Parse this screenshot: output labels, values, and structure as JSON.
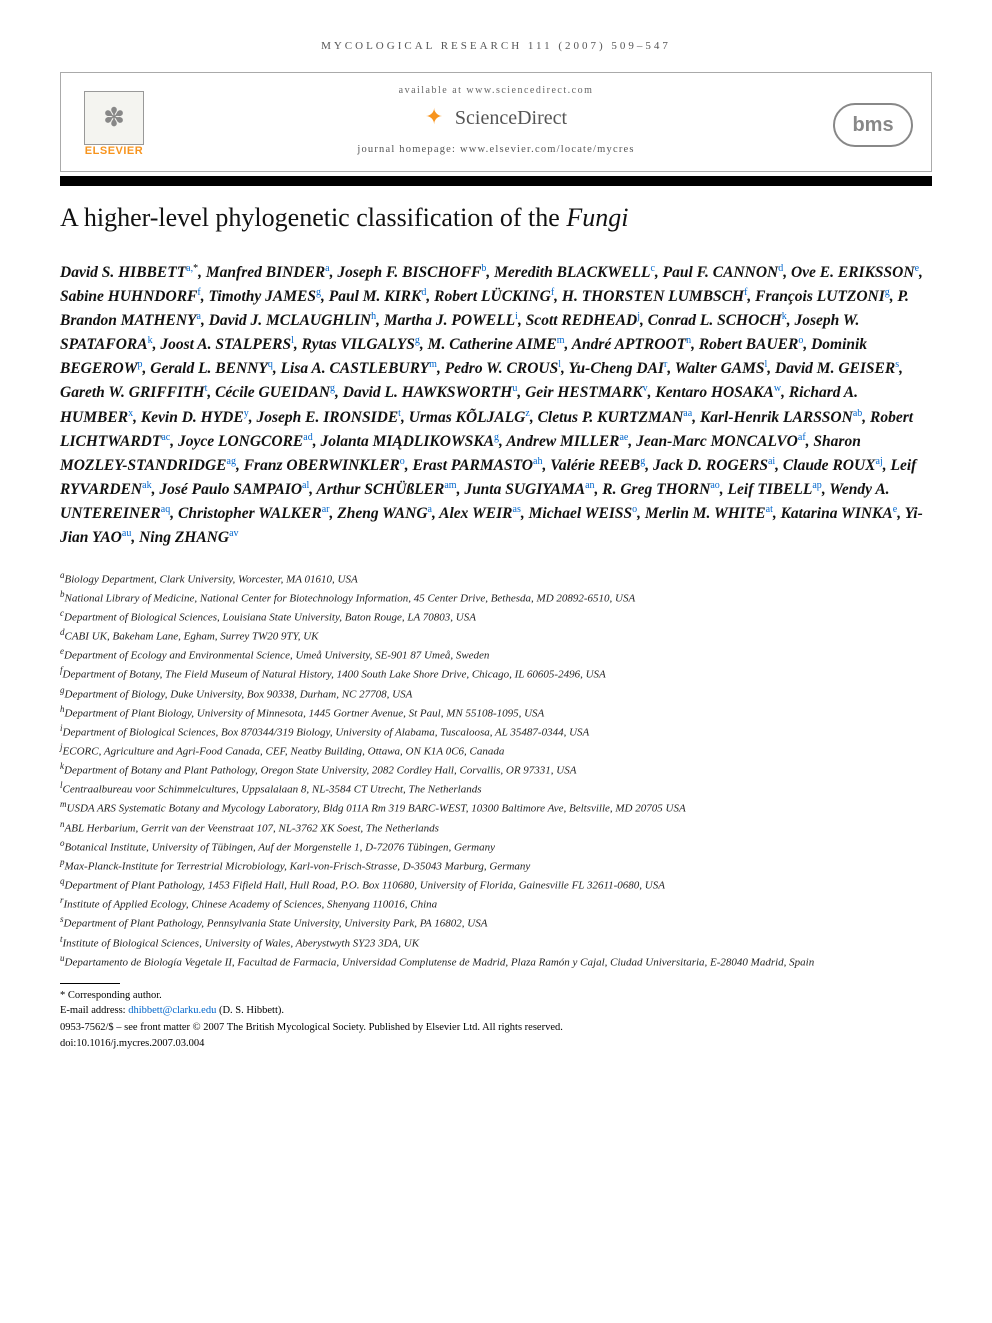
{
  "header": {
    "journal_band": "MYCOLOGICAL RESEARCH 111 (2007) 509–547",
    "available_at": "available at www.sciencedirect.com",
    "sciencedirect": "ScienceDirect",
    "journal_homepage": "journal homepage: www.elsevier.com/locate/mycres",
    "elsevier": "ELSEVIER",
    "bms": "bms"
  },
  "title": {
    "prefix": "A higher-level phylogenetic classification of the ",
    "italic": "Fungi"
  },
  "authors_html": "David S. HIBBETT<sup>a,</sup><sup class=\"star\">*</sup>, Manfred BINDER<sup>a</sup>, Joseph F. BISCHOFF<sup>b</sup>, Meredith BLACKWELL<sup>c</sup>, Paul F. CANNON<sup>d</sup>, Ove E. ERIKSSON<sup>e</sup>, Sabine HUHNDORF<sup>f</sup>, Timothy JAMES<sup>g</sup>, Paul M. KIRK<sup>d</sup>, Robert LÜCKING<sup>f</sup>, H. THORSTEN LUMBSCH<sup>f</sup>, François LUTZONI<sup>g</sup>, P. Brandon MATHENY<sup>a</sup>, David J. MCLAUGHLIN<sup>h</sup>, Martha J. POWELL<sup>i</sup>, Scott REDHEAD<sup>j</sup>, Conrad L. SCHOCH<sup>k</sup>, Joseph W. SPATAFORA<sup>k</sup>, Joost A. STALPERS<sup>l</sup>, Rytas VILGALYS<sup>g</sup>, M. Catherine AIME<sup>m</sup>, André APTROOT<sup>n</sup>, Robert BAUER<sup>o</sup>, Dominik BEGEROW<sup>p</sup>, Gerald L. BENNY<sup>q</sup>, Lisa A. CASTLEBURY<sup>m</sup>, Pedro W. CROUS<sup>l</sup>, Yu-Cheng DAI<sup>r</sup>, Walter GAMS<sup>l</sup>, David M. GEISER<sup>s</sup>, Gareth W. GRIFFITH<sup>t</sup>, Cécile GUEIDAN<sup>g</sup>, David L. HAWKSWORTH<sup>u</sup>, Geir HESTMARK<sup>v</sup>, Kentaro HOSAKA<sup>w</sup>, Richard A. HUMBER<sup>x</sup>, Kevin D. HYDE<sup>y</sup>, Joseph E. IRONSIDE<sup>t</sup>, Urmas KÕLJALG<sup>z</sup>, Cletus P. KURTZMAN<sup>aa</sup>, Karl-Henrik LARSSON<sup>ab</sup>, Robert LICHTWARDT<sup>ac</sup>, Joyce LONGCORE<sup>ad</sup>, Jolanta MIĄDLIKOWSKA<sup>g</sup>, Andrew MILLER<sup>ae</sup>, Jean-Marc MONCALVO<sup>af</sup>, Sharon MOZLEY-STANDRIDGE<sup>ag</sup>, Franz OBERWINKLER<sup>o</sup>, Erast PARMASTO<sup>ah</sup>, Valérie REEB<sup>g</sup>, Jack D. ROGERS<sup>ai</sup>, Claude ROUX<sup>aj</sup>, Leif RYVARDEN<sup>ak</sup>, José Paulo SAMPAIO<sup>al</sup>, Arthur SCHÜßLER<sup>am</sup>, Junta SUGIYAMA<sup>an</sup>, R. Greg THORN<sup>ao</sup>, Leif TIBELL<sup>ap</sup>, Wendy A. UNTEREINER<sup>aq</sup>, Christopher WALKER<sup>ar</sup>, Zheng WANG<sup>a</sup>, Alex WEIR<sup>as</sup>, Michael WEISS<sup>o</sup>, Merlin M. WHITE<sup>at</sup>, Katarina WINKA<sup>e</sup>, Yi-Jian YAO<sup>au</sup>, Ning ZHANG<sup>av</sup>",
  "affiliations": [
    {
      "key": "a",
      "text": "Biology Department, Clark University, Worcester, MA 01610, USA"
    },
    {
      "key": "b",
      "text": "National Library of Medicine, National Center for Biotechnology Information, 45 Center Drive, Bethesda, MD 20892-6510, USA"
    },
    {
      "key": "c",
      "text": "Department of Biological Sciences, Louisiana State University, Baton Rouge, LA 70803, USA"
    },
    {
      "key": "d",
      "text": "CABI UK, Bakeham Lane, Egham, Surrey TW20 9TY, UK"
    },
    {
      "key": "e",
      "text": "Department of Ecology and Environmental Science, Umeå University, SE-901 87 Umeå, Sweden"
    },
    {
      "key": "f",
      "text": "Department of Botany, The Field Museum of Natural History, 1400 South Lake Shore Drive, Chicago, IL 60605-2496, USA"
    },
    {
      "key": "g",
      "text": "Department of Biology, Duke University, Box 90338, Durham, NC 27708, USA"
    },
    {
      "key": "h",
      "text": "Department of Plant Biology, University of Minnesota, 1445 Gortner Avenue, St Paul, MN 55108-1095, USA"
    },
    {
      "key": "i",
      "text": "Department of Biological Sciences, Box 870344/319 Biology, University of Alabama, Tuscaloosa, AL 35487-0344, USA"
    },
    {
      "key": "j",
      "text": "ECORC, Agriculture and Agri-Food Canada, CEF, Neatby Building, Ottawa, ON K1A 0C6, Canada"
    },
    {
      "key": "k",
      "text": "Department of Botany and Plant Pathology, Oregon State University, 2082 Cordley Hall, Corvallis, OR 97331, USA"
    },
    {
      "key": "l",
      "text": "Centraalbureau voor Schimmelcultures, Uppsalalaan 8, NL-3584 CT Utrecht, The Netherlands"
    },
    {
      "key": "m",
      "text": "USDA ARS Systematic Botany and Mycology Laboratory, Bldg 011A Rm 319 BARC-WEST, 10300 Baltimore Ave, Beltsville, MD 20705 USA"
    },
    {
      "key": "n",
      "text": "ABL Herbarium, Gerrit van der Veenstraat 107, NL-3762 XK Soest, The Netherlands"
    },
    {
      "key": "o",
      "text": "Botanical Institute, University of Tübingen, Auf der Morgenstelle 1, D-72076 Tübingen, Germany"
    },
    {
      "key": "p",
      "text": "Max-Planck-Institute for Terrestrial Microbiology, Karl-von-Frisch-Strasse, D-35043 Marburg, Germany"
    },
    {
      "key": "q",
      "text": "Department of Plant Pathology, 1453 Fifield Hall, Hull Road, P.O. Box 110680, University of Florida, Gainesville FL 32611-0680, USA"
    },
    {
      "key": "r",
      "text": "Institute of Applied Ecology, Chinese Academy of Sciences, Shenyang 110016, China"
    },
    {
      "key": "s",
      "text": "Department of Plant Pathology, Pennsylvania State University, University Park, PA 16802, USA"
    },
    {
      "key": "t",
      "text": "Institute of Biological Sciences, University of Wales, Aberystwyth SY23 3DA, UK"
    },
    {
      "key": "u",
      "text": "Departamento de Biología Vegetale II, Facultad de Farmacia, Universidad Complutense de Madrid, Plaza Ramón y Cajal, Ciudad Universitaria, E-28040 Madrid, Spain"
    }
  ],
  "footnotes": {
    "corresponding": "* Corresponding author.",
    "email_label": "E-mail address: ",
    "email": "dhibbett@clarku.edu",
    "email_name": " (D. S.  Hibbett).",
    "copyright": "0953-7562/$ – see front matter © 2007 The British Mycological Society. Published by Elsevier Ltd. All rights reserved.",
    "doi": "doi:10.1016/j.mycres.2007.03.004"
  },
  "colors": {
    "link": "#0066cc",
    "elsevier_orange": "#f7941e",
    "text": "#000000",
    "muted": "#555555"
  }
}
